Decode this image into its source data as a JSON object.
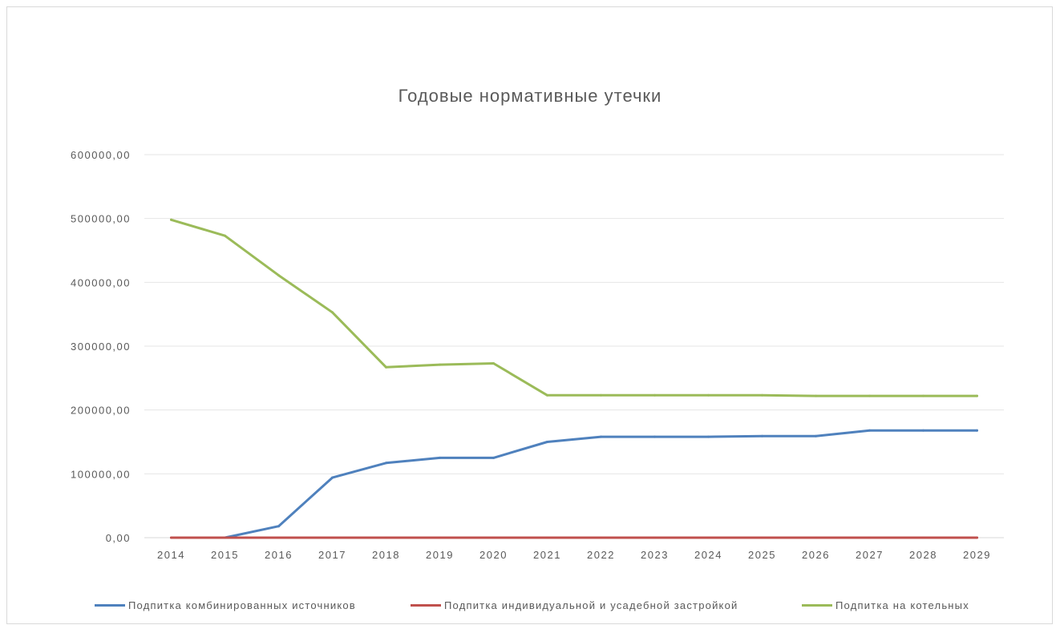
{
  "chart_data": {
    "type": "line",
    "title": "Годовые нормативные утечки",
    "xlabel": "",
    "ylabel": "",
    "categories": [
      "2014",
      "2015",
      "2016",
      "2017",
      "2018",
      "2019",
      "2020",
      "2021",
      "2022",
      "2023",
      "2024",
      "2025",
      "2026",
      "2027",
      "2028",
      "2029"
    ],
    "ylim": [
      0,
      600000
    ],
    "y_ticks": [
      0,
      100000,
      200000,
      300000,
      400000,
      500000,
      600000
    ],
    "y_tick_labels": [
      "0,00",
      "100000,00",
      "200000,00",
      "300000,00",
      "400000,00",
      "500000,00",
      "600000,00"
    ],
    "grid": true,
    "legend_position": "bottom",
    "series": [
      {
        "name": "Подпитка комбинированных источников",
        "color": "#4F81BD",
        "values": [
          null,
          0,
          18000,
          94000,
          117000,
          125000,
          125000,
          150000,
          158000,
          158000,
          158000,
          159000,
          159000,
          168000,
          168000,
          168000
        ]
      },
      {
        "name": "Подпитка индивидуальной и усадебной застройкой",
        "color": "#C0504D",
        "values": [
          0,
          0,
          0,
          0,
          0,
          0,
          0,
          0,
          0,
          0,
          0,
          0,
          0,
          0,
          0,
          0
        ]
      },
      {
        "name": "Подпитка на котельных",
        "color": "#9BBB59",
        "values": [
          498000,
          473000,
          411000,
          353000,
          267000,
          271000,
          273000,
          223000,
          223000,
          223000,
          223000,
          223000,
          222000,
          222000,
          222000,
          222000
        ]
      }
    ]
  }
}
